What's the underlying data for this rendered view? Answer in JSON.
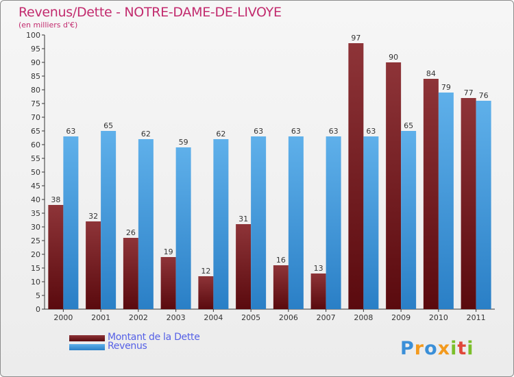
{
  "title": "Revenus/Dette - NOTRE-DAME-DE-LIVOYE",
  "subtitle": "(en milliers d'€)",
  "colors": {
    "title": "#c22b6e",
    "legend_text": "#5560e6",
    "debt_top": "#8e3438",
    "debt_bottom": "#5a0a0e",
    "revenue_top": "#5fb0ea",
    "revenue_bottom": "#2a7fc6",
    "axis": "#333333"
  },
  "legend": {
    "debt_label": "Montant de la Dette",
    "revenue_label": "Revenus"
  },
  "logo": {
    "text": "Proxiti",
    "icon": "proxiti-logo"
  },
  "chart_data": {
    "type": "bar",
    "categories": [
      "2000",
      "2001",
      "2002",
      "2003",
      "2004",
      "2005",
      "2006",
      "2007",
      "2008",
      "2009",
      "2010",
      "2011"
    ],
    "series": [
      {
        "name": "Montant de la Dette",
        "values": [
          38,
          32,
          26,
          19,
          12,
          31,
          16,
          13,
          97,
          90,
          84,
          77
        ]
      },
      {
        "name": "Revenus",
        "values": [
          63,
          65,
          62,
          59,
          62,
          63,
          63,
          63,
          63,
          65,
          79,
          76
        ]
      }
    ],
    "ylim": [
      0,
      100
    ],
    "ytick_step": 5,
    "grid": false,
    "data_labels": true,
    "legend_position": "bottom-left"
  }
}
